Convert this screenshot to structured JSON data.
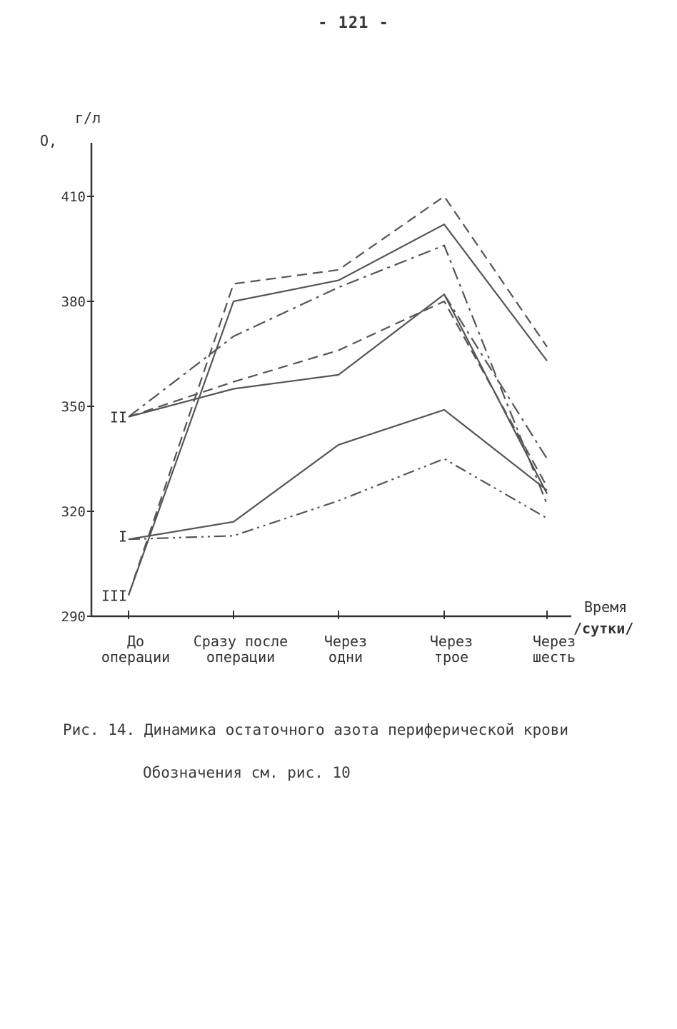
{
  "page": {
    "number": "- 121 -"
  },
  "caption": {
    "title": "Рис. 14. Динамика остаточного азота периферической крови",
    "note": "Обозначения см. рис. 10"
  },
  "colors": {
    "line": "#555555",
    "axis": "#333333",
    "text": "#333333"
  },
  "chart_data": {
    "type": "line",
    "title": "",
    "ylabel_top": "г/л",
    "ylabel_left": "О,",
    "xlabel": [
      "Время",
      "/сутки/"
    ],
    "ylim": [
      290,
      420
    ],
    "yticks": [
      290,
      320,
      350,
      380,
      410
    ],
    "categories": [
      [
        "До",
        "операции"
      ],
      [
        "Сразу после",
        "операции"
      ],
      [
        "Через",
        "одни"
      ],
      [
        "Через",
        "трое"
      ],
      [
        "Через",
        "шесть"
      ]
    ],
    "group_labels": [
      {
        "label": "II",
        "value": 347
      },
      {
        "label": "I",
        "value": 313
      },
      {
        "label": "III",
        "value": 296
      }
    ],
    "grid": false,
    "series": [
      {
        "dash": "dashed",
        "values": [
          296,
          385,
          389,
          410,
          367
        ]
      },
      {
        "dash": "solid",
        "values": [
          296,
          380,
          386,
          402,
          363
        ]
      },
      {
        "dash": "dashdot",
        "values": [
          347,
          370,
          384,
          396,
          322
        ]
      },
      {
        "dash": "dashed",
        "values": [
          347,
          357,
          366,
          380,
          327
        ]
      },
      {
        "dash": "solid",
        "values": [
          347,
          355,
          359,
          382,
          325
        ]
      },
      {
        "dash": "solid",
        "values": [
          312,
          317,
          339,
          349,
          326
        ]
      },
      {
        "dash": "dashdotdot",
        "values": [
          312,
          313,
          323,
          335,
          318
        ]
      },
      {
        "dash": "dashdot",
        "values": [
          null,
          null,
          null,
          382,
          335
        ]
      }
    ]
  }
}
